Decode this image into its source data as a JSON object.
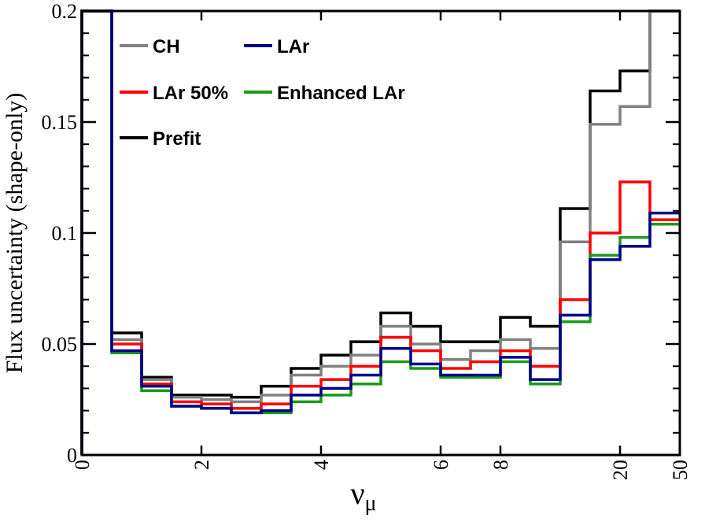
{
  "chart_data": {
    "type": "line",
    "step": true,
    "ylabel": "Flux uncertainty (shape-only)",
    "xlabel_main": "ν",
    "xlabel_sub": "μ",
    "ylim": [
      0,
      0.2
    ],
    "y_ticks": [
      "0",
      "0.05",
      "0.1",
      "0.15",
      "0.2"
    ],
    "y_tick_values": [
      0,
      0.05,
      0.1,
      0.15,
      0.2
    ],
    "x_ticks": [
      "0",
      "2",
      "4",
      "6",
      "8",
      "20",
      "50"
    ],
    "x_tick_values": [
      0,
      2,
      4,
      6,
      8,
      20,
      50
    ],
    "x_edges": [
      0,
      0.5,
      1,
      1.5,
      2,
      2.5,
      3,
      3.5,
      4,
      4.5,
      5,
      5.5,
      6,
      7,
      8,
      9,
      10,
      15,
      20,
      30,
      50
    ],
    "grid": false,
    "legend_placement": "top-left",
    "series": [
      {
        "name": "CH",
        "color": "#808080",
        "values": [
          0.2,
          0.052,
          0.034,
          0.026,
          0.025,
          0.024,
          0.027,
          0.036,
          0.04,
          0.045,
          0.058,
          0.05,
          0.043,
          0.047,
          0.052,
          0.048,
          0.096,
          0.149,
          0.157,
          0.2
        ]
      },
      {
        "name": "LAr",
        "color": "#00008b",
        "values": [
          0.2,
          0.047,
          0.031,
          0.022,
          0.021,
          0.019,
          0.02,
          0.027,
          0.03,
          0.036,
          0.048,
          0.041,
          0.036,
          0.036,
          0.044,
          0.034,
          0.063,
          0.088,
          0.094,
          0.109
        ]
      },
      {
        "name": "LAr 50%",
        "color": "#ff0000",
        "values": [
          0.2,
          0.05,
          0.032,
          0.024,
          0.023,
          0.021,
          0.023,
          0.031,
          0.034,
          0.04,
          0.053,
          0.047,
          0.039,
          0.042,
          0.047,
          0.04,
          0.07,
          0.1,
          0.123,
          0.106
        ]
      },
      {
        "name": "Enhanced LAr",
        "color": "#1a9a1a",
        "values": [
          0.2,
          0.046,
          0.029,
          0.022,
          0.021,
          0.019,
          0.019,
          0.024,
          0.027,
          0.032,
          0.042,
          0.039,
          0.035,
          0.035,
          0.042,
          0.032,
          0.06,
          0.09,
          0.098,
          0.104
        ]
      },
      {
        "name": "Prefit",
        "color": "#000000",
        "values": [
          0.2,
          0.055,
          0.035,
          0.027,
          0.027,
          0.026,
          0.031,
          0.039,
          0.045,
          0.051,
          0.064,
          0.058,
          0.051,
          0.051,
          0.062,
          0.058,
          0.111,
          0.164,
          0.173,
          0.2
        ]
      }
    ],
    "legend_entries": [
      "CH",
      "LAr",
      "LAr 50%",
      "Enhanced LAr",
      "Prefit"
    ]
  }
}
